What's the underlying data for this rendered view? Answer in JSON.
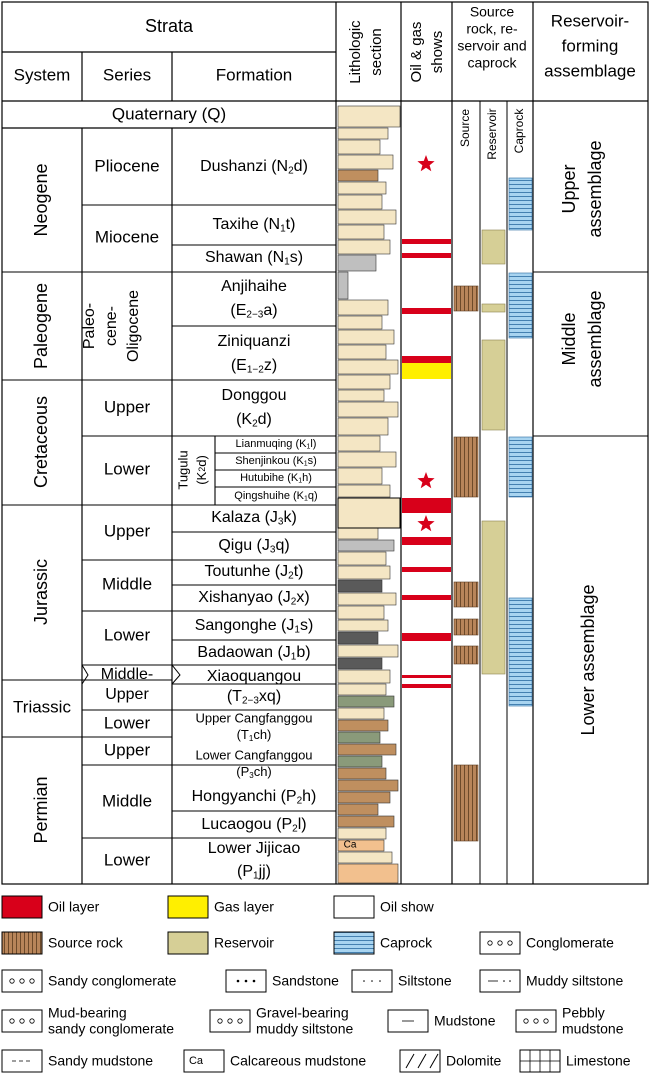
{
  "header": {
    "strata": "Strata",
    "system": "System",
    "series": "Series",
    "formation": "Formation",
    "lithologic_section": [
      "Lithologic",
      "section"
    ],
    "oil_gas_shows": [
      "Oil & gas",
      "shows"
    ],
    "src_res_cap": [
      "Source",
      "rock, re-",
      "servoir and",
      "caprock"
    ],
    "reservoir_forming": [
      "Reservoir-",
      "forming",
      "assemblage"
    ],
    "sub_source": "Source",
    "sub_reservoir": "Reservoir",
    "sub_caprock": "Caprock"
  },
  "quaternary": "Quaternary (Q)",
  "systems": {
    "neogene": "Neogene",
    "paleogene": "Paleogene",
    "cretaceous": "Cretaceous",
    "jurassic": "Jurassic",
    "triassic": "Triassic",
    "permian": "Permian"
  },
  "series": {
    "pliocene": "Pliocene",
    "miocene": "Miocene",
    "paleo_oligocene": [
      "Paleo-",
      "cene-",
      "Oligocene"
    ],
    "cret_upper": "Upper",
    "cret_lower": "Lower",
    "jur_upper": "Upper",
    "jur_middle": "Middle",
    "jur_lower": "Lower",
    "tri_middle_upper": [
      "Middle-",
      "Upper"
    ],
    "tri_lower": "Lower",
    "perm_upper": "Upper",
    "perm_middle": "Middle",
    "perm_lower": "Lower"
  },
  "formations": {
    "dushanzi": {
      "name": "Dushanzi (N",
      "sub": "2",
      "tail": "d)"
    },
    "taxihe": {
      "name": "Taxihe (N",
      "sub": "1",
      "tail": "t)"
    },
    "shawan": {
      "name": "Shawan (N",
      "sub": "1",
      "tail": "s)"
    },
    "anjihaihe": {
      "name": "Anjihaihe",
      "l2": "(E",
      "sub": "2−3",
      "tail": "a)"
    },
    "ziniquanzi": {
      "name": "Ziniquanzi",
      "l2": "(E",
      "sub": "1−2",
      "tail": "z)"
    },
    "donggou": {
      "name": "Donggou",
      "l2": "(K",
      "sub": "2",
      "tail": "d)"
    },
    "tugulu": {
      "name": "Tugulu",
      "l2": "(K",
      "sub": "2",
      "tail": "d)"
    },
    "lianmuqing": {
      "name": "Lianmuqing (K",
      "sub": "1",
      "tail": "l)"
    },
    "shenjinkou": {
      "name": "Shenjinkou (K",
      "sub": "1",
      "tail": "s)"
    },
    "hutubihe": {
      "name": "Hutubihe (K",
      "sub": "1",
      "tail": "h)"
    },
    "qingshuihe": {
      "name": "Qingshuihe (K",
      "sub": "1",
      "tail": "q)"
    },
    "kalaza": {
      "name": "Kalaza (J",
      "sub": "3",
      "tail": "k)"
    },
    "qigu": {
      "name": "Qigu (J",
      "sub": "3",
      "tail": "q)"
    },
    "toutunhe": {
      "name": "Toutunhe (J",
      "sub": "2",
      "tail": "t)"
    },
    "xishanyao": {
      "name": "Xishanyao (J",
      "sub": "2",
      "tail": "x)"
    },
    "sangonghe": {
      "name": "Sangonghe (J",
      "sub": "1",
      "tail": "s)"
    },
    "badaowan": {
      "name": "Badaowan (J",
      "sub": "1",
      "tail": "b)"
    },
    "xiaoquangou": {
      "name": "Xiaoquangou",
      "l2": "(T",
      "sub": "2−3",
      "tail": "xq)"
    },
    "upper_cangfanggou": {
      "name": "Upper Cangfanggou",
      "l2": "(T",
      "sub": "1",
      "tail": "ch)"
    },
    "lower_cangfanggou": {
      "name": "Lower Cangfanggou",
      "l2": "(P",
      "sub": "3",
      "tail": "ch)"
    },
    "hongyanchi": {
      "name": "Hongyanchi (P",
      "sub": "2",
      "tail": "h)"
    },
    "lucaogou": {
      "name": "Lucaogou (P",
      "sub": "2",
      "tail": "l)"
    },
    "lower_jijicao": {
      "name": "Lower Jijicao",
      "l2": "(P",
      "sub": "1",
      "tail": "jj)"
    }
  },
  "assemblages": {
    "upper": [
      "Upper",
      "assemblage"
    ],
    "middle": [
      "Middle",
      "assemblage"
    ],
    "lower": "Lower assemblage"
  },
  "lith_inline_label": "Ca",
  "legend": [
    {
      "key": "oil_layer",
      "label": "Oil layer"
    },
    {
      "key": "gas_layer",
      "label": "Gas layer"
    },
    {
      "key": "oil_show",
      "label": "Oil show"
    },
    {
      "key": "source_rock",
      "label": "Source rock"
    },
    {
      "key": "reservoir",
      "label": "Reservoir"
    },
    {
      "key": "caprock",
      "label": "Caprock"
    },
    {
      "key": "conglomerate",
      "label": "Conglomerate"
    },
    {
      "key": "sandy_conglomerate",
      "label": "Sandy conglomerate"
    },
    {
      "key": "sandstone",
      "label": "Sandstone"
    },
    {
      "key": "siltstone",
      "label": "Siltstone"
    },
    {
      "key": "muddy_siltstone",
      "label": "Muddy siltstone"
    },
    {
      "key": "mud_bearing_sandy_conglomerate",
      "label": "Mud-bearing sandy conglomerate",
      "lines": [
        "Mud-bearing",
        "sandy conglomerate"
      ]
    },
    {
      "key": "gravel_bearing_muddy_siltstone",
      "label": "Gravel-bearing muddy siltstone",
      "lines": [
        "Gravel-bearing",
        "muddy siltstone"
      ]
    },
    {
      "key": "mudstone",
      "label": "Mudstone"
    },
    {
      "key": "pebbly_mudstone",
      "label": "Pebbly mudstone",
      "lines": [
        "Pebbly",
        "mudstone"
      ]
    },
    {
      "key": "sandy_mudstone",
      "label": "Sandy mudstone"
    },
    {
      "key": "calcareous_mudstone",
      "label": "Calcareous mudstone",
      "sym": "Ca"
    },
    {
      "key": "dolomite",
      "label": "Dolomite"
    },
    {
      "key": "limestone",
      "label": "Limestone"
    }
  ],
  "colors": {
    "oil": "#d8001a",
    "gas": "#ffef00",
    "source": "#b8855a",
    "reservoir": "#d6cf96",
    "caprock": "#a8d4f0",
    "lith_sand": "#f4e6c4",
    "lith_orange": "#f2c08e",
    "lith_brown": "#bf8f5f",
    "lith_gray": "#bfbfbf",
    "lith_dark": "#5a5a5a",
    "lith_green": "#8a9a7a"
  }
}
